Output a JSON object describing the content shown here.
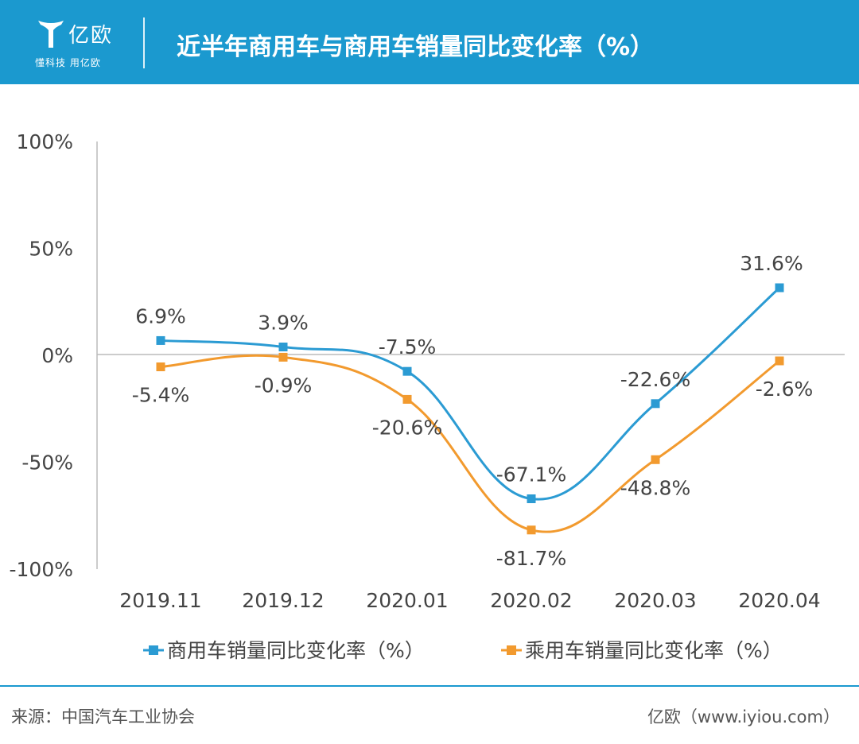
{
  "header": {
    "logo_name": "亿欧",
    "logo_slogan": "懂科技 用亿欧",
    "title": "近半年商用车与商用车销量同比变化率（%）"
  },
  "colors": {
    "brand": "#1b99cf",
    "series_1": "#2b9bd3",
    "series_2": "#f29a2e",
    "axis": "#bbbbbb",
    "text": "#444444"
  },
  "chart_data": {
    "type": "line",
    "categories": [
      "2019.11",
      "2019.12",
      "2020.01",
      "2020.02",
      "2020.03",
      "2020.04"
    ],
    "y_ticks": [
      "100%",
      "50%",
      "0%",
      "-50%",
      "-100%"
    ],
    "ylim": [
      -100,
      100
    ],
    "grid": false,
    "legend_position": "bottom",
    "series": [
      {
        "name": "商用车销量同比变化率（%）",
        "values": [
          6.9,
          3.9,
          -7.5,
          -67.1,
          -22.6,
          31.6
        ],
        "labels": [
          "6.9%",
          "3.9%",
          "-7.5%",
          "-67.1%",
          "-22.6%",
          "31.6%"
        ]
      },
      {
        "name": "乘用车销量同比变化率（%）",
        "values": [
          -5.4,
          -0.9,
          -20.6,
          -81.7,
          -48.8,
          -2.6
        ],
        "labels": [
          "-5.4%",
          "-0.9%",
          "-20.6%",
          "-81.7%",
          "-48.8%",
          "-2.6%"
        ]
      }
    ]
  },
  "footer": {
    "source": "来源：中国汽车工业协会",
    "credit": "亿欧（www.iyiou.com）"
  }
}
